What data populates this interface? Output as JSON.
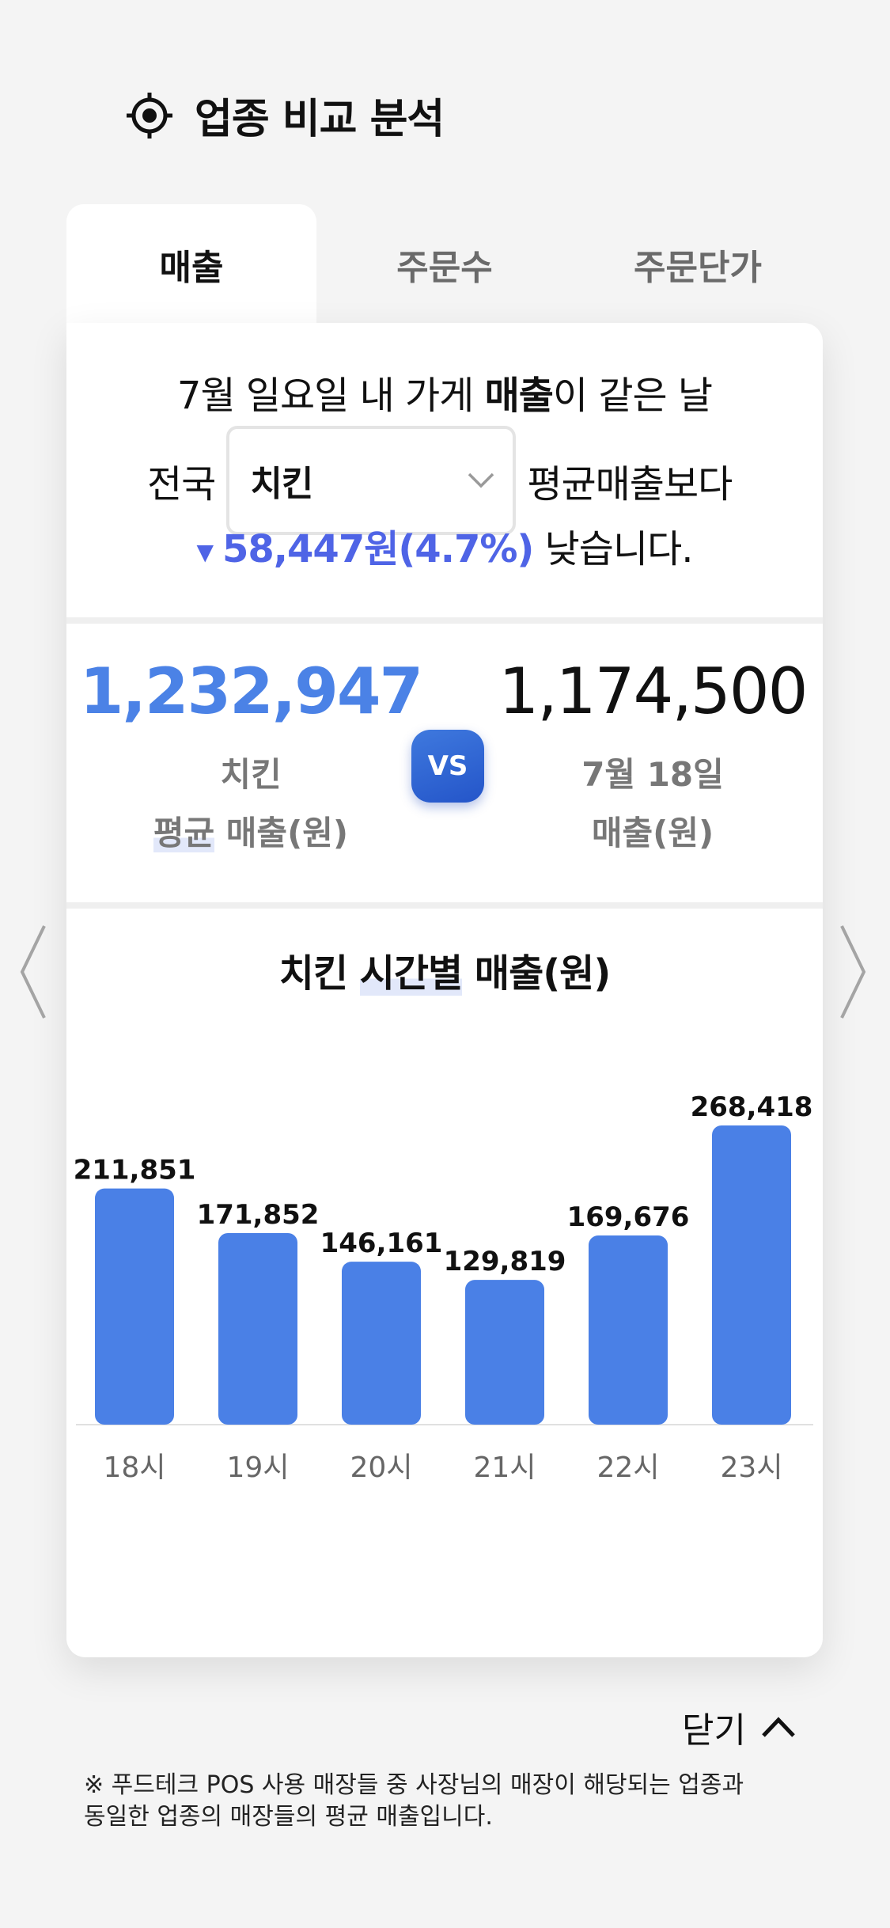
{
  "header": {
    "title": "업종 비교 분석",
    "icon": "target-icon"
  },
  "tabs": [
    {
      "label": "매출",
      "active": true
    },
    {
      "label": "주문수",
      "active": false
    },
    {
      "label": "주문단가",
      "active": false
    }
  ],
  "summary": {
    "prefix": "7월 일요일  내 가게 ",
    "metric": "매출",
    "suffix": "이 같은 날",
    "scope": "전국",
    "category_selected": "치킨",
    "compare_text": "평균매출보다",
    "diff_icon": "triangle-down-icon",
    "diff": "58,447원(4.7%)",
    "result": "낮습니다."
  },
  "comparison": {
    "left_value": "1,232,947",
    "left_label1": "치킨",
    "left_label2a": "평균",
    "left_label2b": " 매출(원)",
    "vs": "VS",
    "right_value": "1,174,500",
    "right_label1": "7월 18일",
    "right_label2": "매출(원)"
  },
  "chart_title": {
    "a": "치킨  ",
    "b": "시간별",
    "c": "  매출(원)"
  },
  "chart_data": {
    "type": "bar",
    "title": "치킨  시간별  매출(원)",
    "categories": [
      "18시",
      "19시",
      "20시",
      "21시",
      "22시",
      "23시"
    ],
    "values": [
      211851,
      171852,
      146161,
      129819,
      169676,
      268418
    ],
    "labels": [
      "211,851",
      "171,852",
      "146,161",
      "129,819",
      "169,676",
      "268,418"
    ],
    "ylim": [
      0,
      268418
    ],
    "grid": false,
    "bar_color": "#4a80e6"
  },
  "nav": {
    "prev_icon": "chevron-left-icon",
    "next_icon": "chevron-right-icon"
  },
  "close_label": "닫기",
  "footnote_line1": "※ 푸드테크 POS 사용 매장들 중 사장님의 매장이 해당되는 업종과",
  "footnote_line2": "동일한 업종의 매장들의 평균 매출입니다.",
  "colors": {
    "accent_blue": "#4b82e6",
    "diff_blue": "#4f64e6",
    "background": "#f4f4f4"
  }
}
